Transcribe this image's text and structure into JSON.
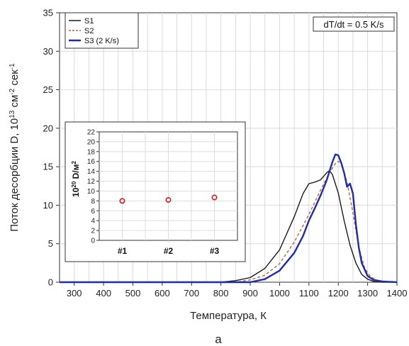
{
  "chart_data": [
    {
      "type": "line",
      "xlabel": "Температура, К",
      "ylabel": "Поток десорбции D, 10",
      "ylabel_exp1": "13",
      "ylabel_mid": " см",
      "ylabel_exp2": "-2",
      "ylabel_tail": " сек",
      "ylabel_exp3": "-1",
      "annotation": "dT/dt = 0.5 K/s",
      "panel_label": "a",
      "xlim": [
        250,
        1400
      ],
      "ylim": [
        0,
        35
      ],
      "x_ticks": [
        "300",
        "400",
        "500",
        "600",
        "700",
        "800",
        "900",
        "1000",
        "1100",
        "1200",
        "1300",
        "1400"
      ],
      "y_ticks": [
        "0",
        "5",
        "10",
        "15",
        "20",
        "25",
        "30",
        "35"
      ],
      "grid": true,
      "legend_position": "top-left",
      "series": [
        {
          "name": "S1",
          "color": "#1a1a1a",
          "style": "solid",
          "x": [
            250,
            800,
            850,
            900,
            950,
            1000,
            1050,
            1080,
            1100,
            1120,
            1140,
            1160,
            1170,
            1180,
            1200,
            1220,
            1240,
            1260,
            1280,
            1300,
            1320,
            1350,
            1400
          ],
          "y": [
            0,
            0,
            0.2,
            0.6,
            1.8,
            4.2,
            8.5,
            11.5,
            12.8,
            13.0,
            13.3,
            14.2,
            14.5,
            14.0,
            11.6,
            8.0,
            4.8,
            2.5,
            1.0,
            0.4,
            0.1,
            0,
            0
          ]
        },
        {
          "name": "S2",
          "color": "#b5652e",
          "style": "dashed",
          "x": [
            250,
            850,
            900,
            950,
            1000,
            1050,
            1100,
            1140,
            1170,
            1190,
            1200,
            1210,
            1230,
            1250,
            1270,
            1290,
            1310,
            1340,
            1400
          ],
          "y": [
            0,
            0,
            0.3,
            0.9,
            2.4,
            5.2,
            8.8,
            12.0,
            14.2,
            15.4,
            15.7,
            15.4,
            13.0,
            9.0,
            4.5,
            1.8,
            0.7,
            0.1,
            0
          ]
        },
        {
          "name": "S3 (2 K/s)",
          "color": "#1f2dab",
          "style": "solid",
          "x": [
            250,
            900,
            950,
            1000,
            1050,
            1080,
            1100,
            1120,
            1140,
            1160,
            1180,
            1190,
            1200,
            1210,
            1220,
            1230,
            1240,
            1250,
            1260,
            1270,
            1280,
            1300,
            1320,
            1350,
            1400
          ],
          "y": [
            0,
            0,
            0.4,
            1.5,
            3.8,
            6.0,
            8.0,
            9.6,
            11.3,
            13.2,
            15.6,
            16.6,
            16.5,
            15.5,
            14.2,
            12.4,
            12.8,
            11.5,
            7.5,
            4.5,
            2.5,
            0.8,
            0.3,
            0.1,
            0
          ]
        }
      ]
    },
    {
      "type": "scatter",
      "ylabel": "10",
      "ylabel_exp": "20",
      "ylabel_tail": " D/м",
      "ylabel_exp2": "2",
      "categories": [
        "#1",
        "#2",
        "#3"
      ],
      "values": [
        8.0,
        8.2,
        8.7
      ],
      "ylim": [
        0,
        22
      ],
      "y_ticks": [
        "0",
        "2",
        "4",
        "6",
        "8",
        "10",
        "12",
        "14",
        "16",
        "18",
        "20",
        "22"
      ],
      "marker_color": "#c22222",
      "grid": true
    }
  ]
}
